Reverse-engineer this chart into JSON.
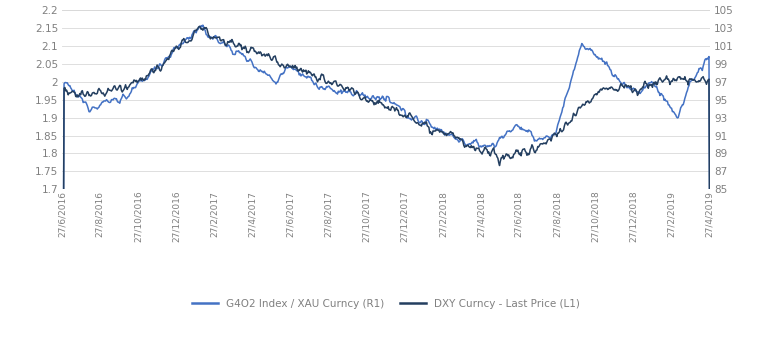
{
  "left_yticks": [
    1.7,
    1.75,
    1.8,
    1.85,
    1.9,
    1.95,
    2.0,
    2.05,
    2.1,
    2.15,
    2.2
  ],
  "right_yticks": [
    85,
    87,
    89,
    91,
    93,
    95,
    97,
    99,
    101,
    103,
    105
  ],
  "ylim_left": [
    1.7,
    2.2
  ],
  "ylim_right": [
    85,
    105
  ],
  "xtick_labels": [
    "27/6/2016",
    "27/8/2016",
    "27/10/2016",
    "27/12/2016",
    "27/2/2017",
    "27/4/2017",
    "27/6/2017",
    "27/8/2017",
    "27/10/2017",
    "27/12/2017",
    "27/2/2018",
    "27/4/2018",
    "27/6/2018",
    "27/8/2018",
    "27/10/2018",
    "27/12/2018",
    "27/2/2019",
    "27/4/2019"
  ],
  "line1_color": "#4472C4",
  "line2_color": "#243F60",
  "legend_labels": [
    "G4O2 Index / XAU Curncy (R1)",
    "DXY Curncy - Last Price (L1)"
  ],
  "grid_color": "#D9D9D9",
  "tick_color": "#808080",
  "background_color": "#FFFFFF",
  "line_width": 1.1,
  "fig_width": 7.8,
  "fig_height": 3.38,
  "dpi": 100
}
